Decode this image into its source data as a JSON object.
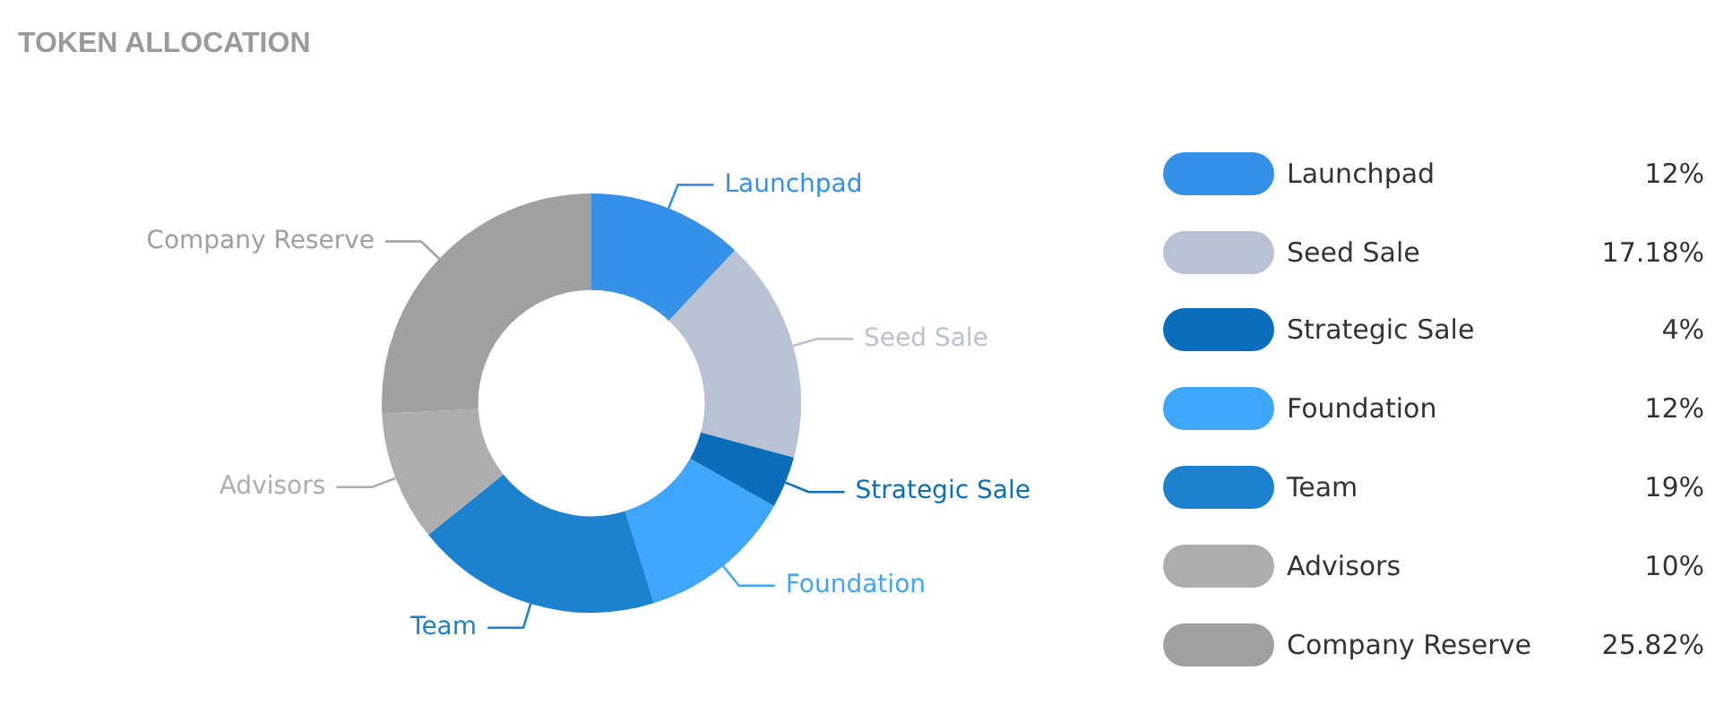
{
  "chart_data": {
    "type": "donut",
    "title": "TOKEN ALLOCATION",
    "categories": [
      "Launchpad",
      "Seed Sale",
      "Strategic Sale",
      "Foundation",
      "Team",
      "Advisors",
      "Company Reserve"
    ],
    "values": [
      12,
      17.18,
      4,
      12,
      19,
      10,
      25.82
    ],
    "colors": [
      "#3590e8",
      "#b8c2d2",
      "#0a6ebd",
      "#3ea6fb",
      "#1c82d0",
      "#adadad",
      "#a0a0a0"
    ],
    "value_labels": [
      "12%",
      "17.18%",
      "4%",
      "12%",
      "19%",
      "10%",
      "25.82%"
    ],
    "legend": "right"
  }
}
